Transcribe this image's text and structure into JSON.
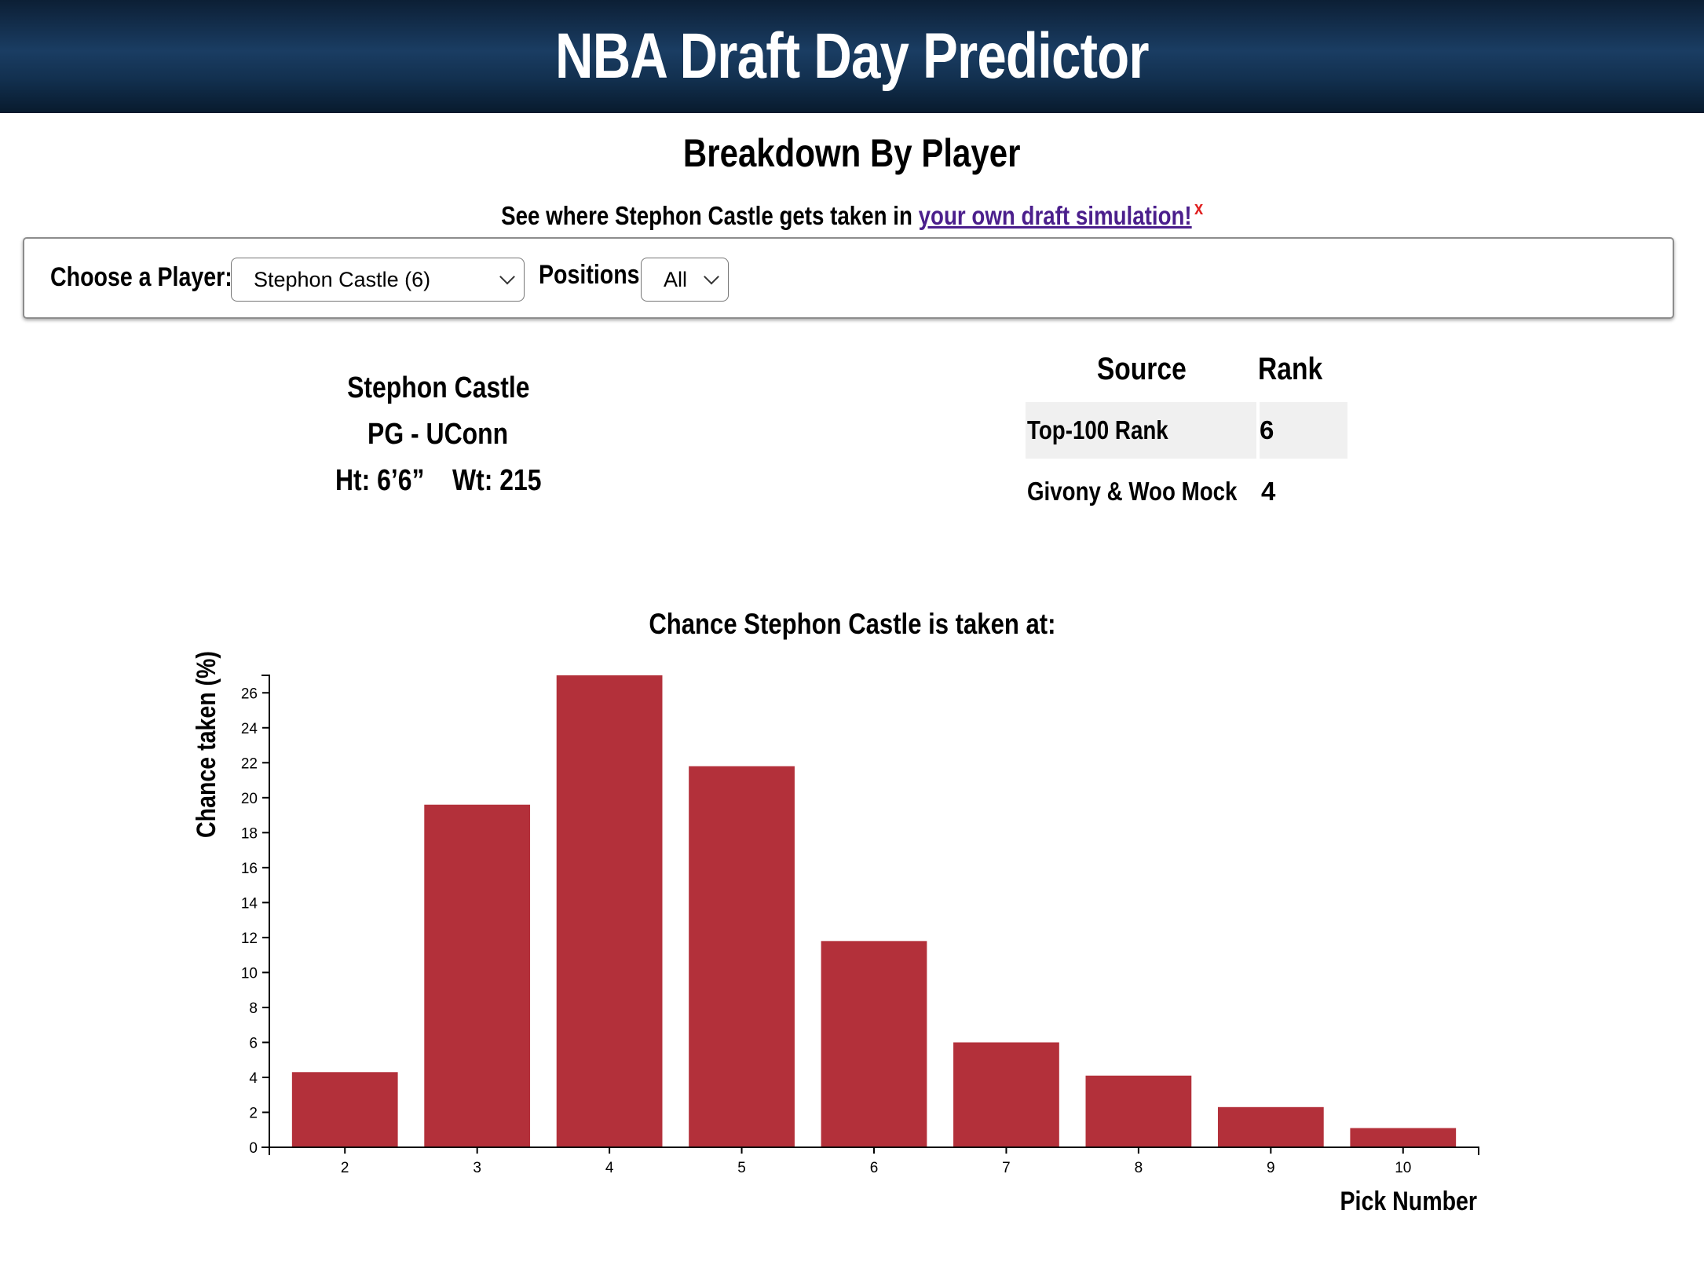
{
  "app": {
    "title": "NBA Draft Day Predictor"
  },
  "section": {
    "title": "Breakdown By Player"
  },
  "promo": {
    "prefix": "See where Stephon Castle gets taken in ",
    "link_text": "your own draft simulation!",
    "close_label": "x"
  },
  "controls": {
    "player_label": "Choose a Player:",
    "player_selected": "Stephon Castle (6)",
    "positions_label": "Positions:",
    "positions_selected": "All"
  },
  "player": {
    "name": "Stephon Castle",
    "position_school": "PG - UConn",
    "height": "Ht: 6’6”",
    "weight": "Wt: 215"
  },
  "rankings": {
    "headers": [
      "Source",
      "Rank"
    ],
    "rows": [
      {
        "source": "Top-100 Rank",
        "rank": "6"
      },
      {
        "source": "Givony & Woo Mock",
        "rank": "4"
      }
    ]
  },
  "colors": {
    "bar": "#b3303a",
    "header_bg": "#12304f",
    "link": "#4b1f8c",
    "close": "#e02020"
  },
  "chart_data": {
    "type": "bar",
    "title": "Chance Stephon Castle is taken at:",
    "xlabel": "Pick Number",
    "ylabel": "Chance taken (%)",
    "categories": [
      "2",
      "3",
      "4",
      "5",
      "6",
      "7",
      "8",
      "9",
      "10"
    ],
    "values": [
      4.3,
      19.6,
      27.0,
      21.8,
      11.8,
      6.0,
      4.1,
      2.3,
      1.1
    ],
    "ylim": [
      0,
      27
    ],
    "yticks": [
      0,
      2,
      4,
      6,
      8,
      10,
      12,
      14,
      16,
      18,
      20,
      22,
      24,
      26
    ],
    "grid": false
  }
}
